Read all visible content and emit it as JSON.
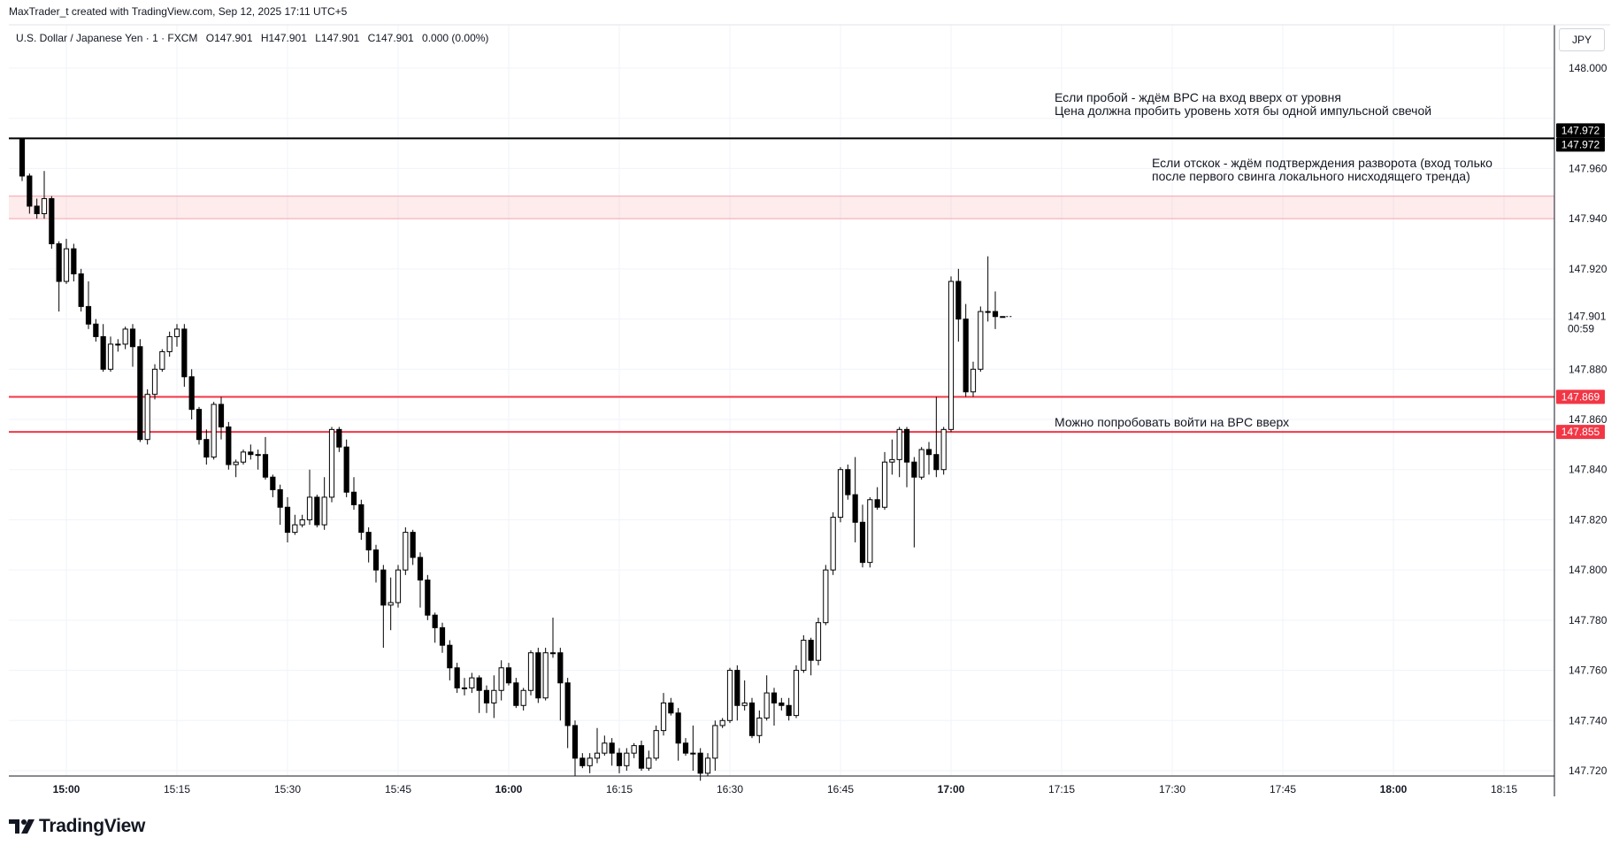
{
  "header": {
    "credit": "MaxTrader_t created with TradingView.com, Sep 12, 2025 17:11 UTC+5"
  },
  "legend": {
    "symbol": "U.S. Dollar / Japanese Yen · 1 · FXCM",
    "open": "O147.901",
    "high": "H147.901",
    "low": "L147.901",
    "close": "C147.901",
    "change": "0.000 (0.00%)"
  },
  "currency": "JPY",
  "annotations": [
    {
      "lines": [
        "Если пробой - ждём BPC на вход вверх от уровня",
        "Цена должна пробить уровень хотя бы одной импульсной свечой"
      ]
    },
    {
      "lines": [
        "Если отскок - ждём подтверждения разворота (вход только",
        "после первого свинга локального нисходящего тренда)"
      ]
    },
    {
      "lines": [
        "Можно попробовать войти на BPC вверх"
      ]
    }
  ],
  "footer": {
    "brand": "TradingView"
  },
  "chart_data": {
    "type": "candlestick",
    "symbol": "U.S. Dollar / Japanese Yen",
    "interval": "1",
    "ylim": [
      147.716,
      148.018
    ],
    "y_ticks": [
      147.72,
      147.74,
      147.76,
      147.78,
      147.8,
      147.82,
      147.84,
      147.86,
      147.88,
      147.9,
      147.92,
      147.94,
      147.96,
      147.98,
      148.0
    ],
    "y_tick_labels": [
      "147.720",
      "147.740",
      "147.760",
      "147.780",
      "147.800",
      "147.820",
      "147.840",
      "147.860",
      "147.880",
      "",
      "147.920",
      "147.940",
      "147.960",
      "",
      "148.000"
    ],
    "x_range_minutes": [
      892,
      1104
    ],
    "x_ticks": [
      {
        "label": "15:00",
        "minute": 900,
        "bold": true
      },
      {
        "label": "15:15",
        "minute": 915,
        "bold": false
      },
      {
        "label": "15:30",
        "minute": 930,
        "bold": false
      },
      {
        "label": "15:45",
        "minute": 945,
        "bold": false
      },
      {
        "label": "16:00",
        "minute": 960,
        "bold": true
      },
      {
        "label": "16:15",
        "minute": 975,
        "bold": false
      },
      {
        "label": "16:30",
        "minute": 990,
        "bold": false
      },
      {
        "label": "16:45",
        "minute": 1005,
        "bold": false
      },
      {
        "label": "17:00",
        "minute": 1020,
        "bold": true
      },
      {
        "label": "17:15",
        "minute": 1035,
        "bold": false
      },
      {
        "label": "17:30",
        "minute": 1050,
        "bold": false
      },
      {
        "label": "17:45",
        "minute": 1065,
        "bold": false
      },
      {
        "label": "18:00",
        "minute": 1080,
        "bold": true
      },
      {
        "label": "18:15",
        "minute": 1095,
        "bold": false
      }
    ],
    "levels": [
      {
        "value": 147.972,
        "label": "147.972",
        "color": "#000000"
      },
      {
        "value": 147.869,
        "label": "147.869",
        "color": "#f23645"
      },
      {
        "value": 147.855,
        "label": "147.855",
        "color": "#f23645"
      }
    ],
    "zone": {
      "from": 147.94,
      "to": 147.949,
      "color": "#f23645"
    },
    "last_price": {
      "value": 147.901,
      "label": "147.901",
      "countdown": "00:59"
    },
    "candles": [
      [
        147.972,
        147.957,
        147.972,
        147.955
      ],
      [
        147.957,
        147.945,
        147.958,
        147.942
      ],
      [
        147.945,
        147.942,
        147.948,
        147.94
      ],
      [
        147.942,
        147.948,
        147.959,
        147.94
      ],
      [
        147.948,
        147.93,
        147.949,
        147.928
      ],
      [
        147.93,
        147.915,
        147.931,
        147.903
      ],
      [
        147.915,
        147.928,
        147.932,
        147.914
      ],
      [
        147.928,
        147.918,
        147.93,
        147.915
      ],
      [
        147.918,
        147.905,
        147.92,
        147.903
      ],
      [
        147.905,
        147.898,
        147.915,
        147.896
      ],
      [
        147.898,
        147.893,
        147.9,
        147.891
      ],
      [
        147.893,
        147.88,
        147.898,
        147.879
      ],
      [
        147.88,
        147.89,
        147.893,
        147.879
      ],
      [
        147.89,
        147.89,
        147.892,
        147.887
      ],
      [
        147.89,
        147.896,
        147.897,
        147.888
      ],
      [
        147.896,
        147.889,
        147.898,
        147.881
      ],
      [
        147.889,
        147.852,
        147.892,
        147.851
      ],
      [
        147.852,
        147.87,
        147.872,
        147.85
      ],
      [
        147.87,
        147.88,
        147.882,
        147.868
      ],
      [
        147.88,
        147.887,
        147.888,
        147.879
      ],
      [
        147.887,
        147.893,
        147.895,
        147.885
      ],
      [
        147.893,
        147.896,
        147.898,
        147.889
      ],
      [
        147.896,
        147.877,
        147.898,
        147.873
      ],
      [
        147.877,
        147.864,
        147.88,
        147.86
      ],
      [
        147.864,
        147.852,
        147.865,
        147.85
      ],
      [
        147.852,
        147.845,
        147.856,
        147.842
      ],
      [
        147.845,
        147.866,
        147.867,
        147.844
      ],
      [
        147.866,
        147.857,
        147.869,
        147.852
      ],
      [
        147.857,
        147.842,
        147.859,
        147.84
      ],
      [
        147.842,
        147.843,
        147.844,
        147.837
      ],
      [
        147.843,
        147.847,
        147.848,
        147.842
      ],
      [
        147.847,
        147.846,
        147.85,
        147.844
      ],
      [
        147.846,
        147.846,
        147.848,
        147.84
      ],
      [
        147.846,
        147.837,
        147.853,
        147.836
      ],
      [
        147.837,
        147.832,
        147.838,
        147.829
      ],
      [
        147.832,
        147.825,
        147.834,
        147.818
      ],
      [
        147.825,
        147.815,
        147.829,
        147.811
      ],
      [
        147.815,
        147.818,
        147.822,
        147.814
      ],
      [
        147.818,
        147.82,
        147.822,
        147.817
      ],
      [
        147.82,
        147.829,
        147.84,
        147.818
      ],
      [
        147.829,
        147.818,
        147.83,
        147.817
      ],
      [
        147.818,
        147.829,
        147.837,
        147.816
      ],
      [
        147.829,
        147.856,
        147.857,
        147.827
      ],
      [
        147.856,
        147.849,
        147.857,
        147.847
      ],
      [
        147.849,
        147.831,
        147.852,
        147.829
      ],
      [
        147.831,
        147.826,
        147.837,
        147.824
      ],
      [
        147.826,
        147.815,
        147.828,
        147.812
      ],
      [
        147.815,
        147.808,
        147.817,
        147.803
      ],
      [
        147.808,
        147.8,
        147.81,
        147.795
      ],
      [
        147.8,
        147.786,
        147.802,
        147.769
      ],
      [
        147.786,
        147.787,
        147.797,
        147.776
      ],
      [
        147.787,
        147.8,
        147.802,
        147.785
      ],
      [
        147.8,
        147.815,
        147.817,
        147.798
      ],
      [
        147.815,
        147.805,
        147.816,
        147.802
      ],
      [
        147.805,
        147.796,
        147.807,
        147.785
      ],
      [
        147.796,
        147.782,
        147.798,
        147.78
      ],
      [
        147.782,
        147.777,
        147.783,
        147.771
      ],
      [
        147.777,
        147.77,
        147.779,
        147.767
      ],
      [
        147.77,
        147.761,
        147.772,
        147.756
      ],
      [
        147.761,
        147.753,
        147.763,
        147.751
      ],
      [
        147.753,
        147.753,
        147.757,
        147.75
      ],
      [
        147.753,
        147.757,
        147.759,
        147.751
      ],
      [
        147.757,
        147.752,
        147.758,
        147.743
      ],
      [
        147.752,
        147.747,
        147.754,
        147.743
      ],
      [
        147.747,
        147.752,
        147.758,
        147.741
      ],
      [
        147.752,
        147.761,
        147.764,
        147.748
      ],
      [
        147.761,
        147.755,
        147.763,
        147.754
      ],
      [
        147.755,
        147.746,
        147.757,
        147.745
      ],
      [
        147.746,
        147.752,
        147.753,
        147.744
      ],
      [
        147.752,
        147.767,
        147.768,
        147.75
      ],
      [
        147.767,
        147.749,
        147.769,
        147.747
      ],
      [
        147.749,
        147.767,
        147.769,
        147.748
      ],
      [
        147.767,
        147.767,
        147.781,
        147.765
      ],
      [
        147.767,
        147.755,
        147.769,
        147.74
      ],
      [
        147.755,
        147.738,
        147.757,
        147.729
      ],
      [
        147.738,
        147.725,
        147.74,
        147.718
      ],
      [
        147.725,
        147.722,
        147.727,
        147.721
      ],
      [
        147.722,
        147.725,
        147.727,
        147.719
      ],
      [
        147.725,
        147.727,
        147.737,
        147.723
      ],
      [
        147.727,
        147.731,
        147.734,
        147.726
      ],
      [
        147.731,
        147.727,
        147.733,
        147.722
      ],
      [
        147.727,
        147.722,
        147.729,
        147.719
      ],
      [
        147.722,
        147.727,
        147.729,
        147.72
      ],
      [
        147.727,
        147.73,
        147.731,
        147.725
      ],
      [
        147.73,
        147.721,
        147.732,
        147.72
      ],
      [
        147.721,
        147.725,
        147.728,
        147.72
      ],
      [
        147.725,
        147.736,
        147.738,
        147.724
      ],
      [
        147.736,
        147.747,
        147.751,
        147.734
      ],
      [
        147.747,
        147.743,
        147.749,
        147.742
      ],
      [
        147.743,
        147.731,
        147.745,
        147.724
      ],
      [
        147.731,
        147.727,
        147.733,
        147.726
      ],
      [
        147.727,
        147.727,
        147.738,
        147.72
      ],
      [
        147.727,
        147.719,
        147.729,
        147.716
      ],
      [
        147.719,
        147.725,
        147.727,
        147.718
      ],
      [
        147.725,
        147.738,
        147.74,
        147.72
      ],
      [
        147.738,
        147.74,
        147.741,
        147.737
      ],
      [
        147.74,
        147.76,
        147.761,
        147.739
      ],
      [
        147.76,
        147.746,
        147.762,
        147.74
      ],
      [
        147.746,
        147.747,
        147.756,
        147.744
      ],
      [
        147.747,
        147.734,
        147.749,
        147.733
      ],
      [
        147.734,
        147.741,
        147.744,
        147.731
      ],
      [
        147.741,
        147.751,
        147.758,
        147.74
      ],
      [
        147.751,
        147.747,
        147.753,
        147.738
      ],
      [
        147.747,
        147.746,
        147.749,
        147.744
      ],
      [
        147.746,
        147.742,
        147.749,
        147.74
      ],
      [
        147.742,
        147.76,
        147.762,
        147.741
      ],
      [
        147.76,
        147.772,
        147.774,
        147.759
      ],
      [
        147.772,
        147.764,
        147.773,
        147.758
      ],
      [
        147.764,
        147.779,
        147.781,
        147.762
      ],
      [
        147.779,
        147.8,
        147.802,
        147.778
      ],
      [
        147.8,
        147.821,
        147.823,
        147.798
      ],
      [
        147.821,
        147.84,
        147.841,
        147.819
      ],
      [
        147.84,
        147.83,
        147.842,
        147.828
      ],
      [
        147.83,
        147.819,
        147.845,
        147.811
      ],
      [
        147.819,
        147.803,
        147.826,
        147.801
      ],
      [
        147.803,
        147.828,
        147.829,
        147.801
      ],
      [
        147.828,
        147.825,
        147.833,
        147.824
      ],
      [
        147.825,
        147.843,
        147.847,
        147.824
      ],
      [
        147.843,
        147.844,
        147.852,
        147.838
      ],
      [
        147.844,
        147.856,
        147.857,
        147.837
      ],
      [
        147.856,
        147.843,
        147.857,
        147.833
      ],
      [
        147.843,
        147.837,
        147.845,
        147.809
      ],
      [
        147.837,
        147.848,
        147.849,
        147.836
      ],
      [
        147.848,
        147.846,
        147.851,
        147.838
      ],
      [
        147.846,
        147.84,
        147.869,
        147.837
      ],
      [
        147.84,
        147.856,
        147.857,
        147.838
      ],
      [
        147.856,
        147.915,
        147.917,
        147.855
      ],
      [
        147.915,
        147.9,
        147.92,
        147.891
      ],
      [
        147.9,
        147.871,
        147.906,
        147.869
      ],
      [
        147.871,
        147.88,
        147.883,
        147.869
      ],
      [
        147.88,
        147.903,
        147.905,
        147.879
      ],
      [
        147.903,
        147.903,
        147.925,
        147.899
      ],
      [
        147.903,
        147.901,
        147.911,
        147.896
      ],
      [
        147.901,
        147.901,
        147.901,
        147.901
      ]
    ]
  }
}
